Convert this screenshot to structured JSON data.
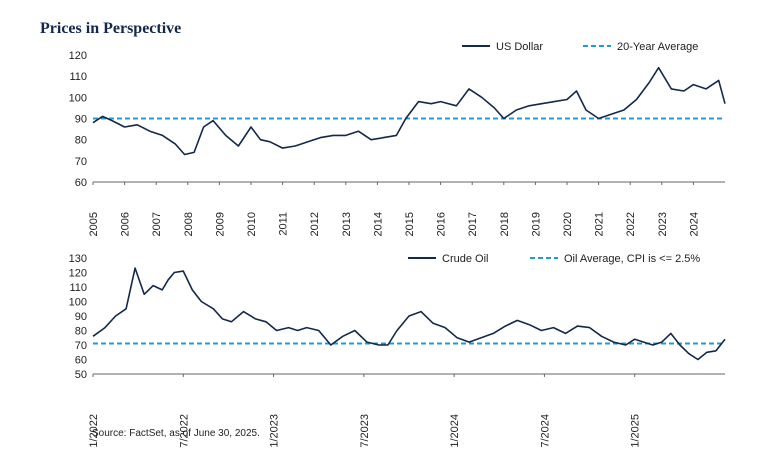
{
  "title": "Prices in Perspective",
  "source": "Source: FactSet, as of June 30, 2025.",
  "colors": {
    "series": "#13294b",
    "average": "#1f9bd6"
  },
  "chart_data": [
    {
      "type": "line",
      "legend": {
        "series_label": "US Dollar",
        "average_label": "20-Year Average",
        "position": "top-right"
      },
      "ylim": [
        60,
        120
      ],
      "yticks": [
        60,
        70,
        80,
        90,
        100,
        110,
        120
      ],
      "xlim": [
        2005,
        2025
      ],
      "xticks": [
        "2005",
        "2006",
        "2007",
        "2008",
        "2009",
        "2010",
        "2011",
        "2012",
        "2013",
        "2014",
        "2015",
        "2016",
        "2017",
        "2018",
        "2019",
        "2020",
        "2021",
        "2022",
        "2023",
        "2024"
      ],
      "average": 90,
      "series": [
        {
          "name": "US Dollar",
          "x": [
            2005.0,
            2005.3,
            2005.6,
            2006.0,
            2006.4,
            2006.8,
            2007.2,
            2007.6,
            2007.9,
            2008.2,
            2008.5,
            2008.8,
            2009.2,
            2009.6,
            2010.0,
            2010.3,
            2010.6,
            2011.0,
            2011.4,
            2011.8,
            2012.2,
            2012.6,
            2013.0,
            2013.4,
            2013.8,
            2014.2,
            2014.6,
            2014.9,
            2015.3,
            2015.7,
            2016.0,
            2016.5,
            2016.9,
            2017.3,
            2017.7,
            2018.0,
            2018.4,
            2018.8,
            2019.2,
            2019.6,
            2020.0,
            2020.3,
            2020.6,
            2021.0,
            2021.4,
            2021.8,
            2022.2,
            2022.6,
            2022.9,
            2023.3,
            2023.7,
            2024.0,
            2024.4,
            2024.8,
            2025.0
          ],
          "y": [
            88,
            91,
            89,
            86,
            87,
            84,
            82,
            78,
            73,
            74,
            86,
            89,
            82,
            77,
            86,
            80,
            79,
            76,
            77,
            79,
            81,
            82,
            82,
            84,
            80,
            81,
            82,
            90,
            98,
            97,
            98,
            96,
            104,
            100,
            95,
            90,
            94,
            96,
            97,
            98,
            99,
            103,
            94,
            90,
            92,
            94,
            99,
            107,
            114,
            104,
            103,
            106,
            104,
            108,
            97
          ]
        }
      ]
    },
    {
      "type": "line",
      "legend": {
        "series_label": "Crude Oil",
        "average_label": "Oil Average, CPI is <= 2.5%",
        "position": "top-right"
      },
      "ylim": [
        50,
        130
      ],
      "yticks": [
        50,
        60,
        70,
        80,
        90,
        100,
        110,
        120,
        130
      ],
      "xlim": [
        0,
        42
      ],
      "xticks": [
        "1/2022",
        "7/2022",
        "1/2023",
        "7/2023",
        "1/2024",
        "7/2024",
        "1/2025"
      ],
      "xtick_positions": [
        0,
        6,
        12,
        18,
        24,
        30,
        36
      ],
      "average": 71,
      "series": [
        {
          "name": "Crude Oil",
          "x": [
            0,
            0.8,
            1.5,
            2.2,
            2.8,
            3.4,
            4.0,
            4.6,
            5.0,
            5.4,
            6.0,
            6.6,
            7.2,
            8.0,
            8.6,
            9.2,
            10.0,
            10.8,
            11.5,
            12.2,
            13.0,
            13.6,
            14.2,
            15.0,
            15.8,
            16.6,
            17.4,
            18.2,
            19.0,
            19.6,
            20.2,
            21.0,
            21.8,
            22.6,
            23.4,
            24.2,
            25.0,
            25.8,
            26.6,
            27.4,
            28.2,
            29.0,
            29.8,
            30.6,
            31.4,
            32.2,
            33.0,
            33.8,
            34.6,
            35.4,
            36.0,
            36.6,
            37.2,
            37.8,
            38.4,
            39.0,
            39.6,
            40.2,
            40.8,
            41.4,
            42.0
          ],
          "y": [
            76,
            82,
            90,
            95,
            123,
            105,
            111,
            108,
            115,
            120,
            121,
            108,
            100,
            95,
            88,
            86,
            93,
            88,
            86,
            80,
            82,
            80,
            82,
            80,
            70,
            76,
            80,
            72,
            70,
            70,
            80,
            90,
            93,
            85,
            82,
            75,
            72,
            75,
            78,
            83,
            87,
            84,
            80,
            82,
            78,
            83,
            82,
            76,
            72,
            70,
            74,
            72,
            70,
            72,
            78,
            70,
            64,
            60,
            65,
            66,
            74
          ]
        }
      ]
    }
  ]
}
